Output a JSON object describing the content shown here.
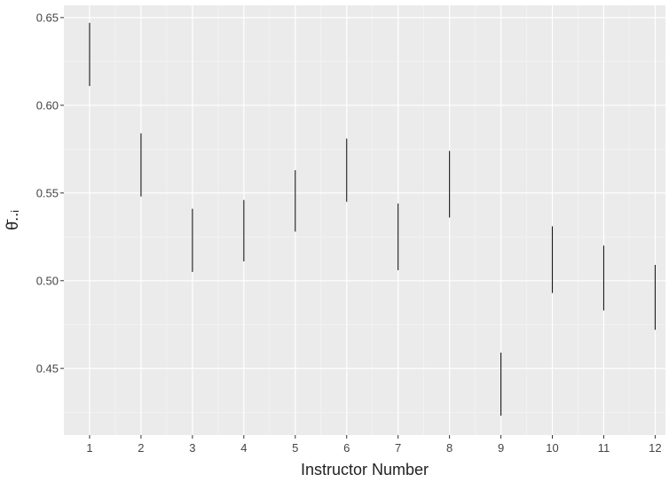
{
  "chart_data": {
    "type": "errorbar",
    "title": "",
    "xlabel": "Instructor Number",
    "ylabel": "θ̄..ᵢ",
    "grid": true,
    "xlim": [
      0.5,
      12.2
    ],
    "ylim": [
      0.412,
      0.657
    ],
    "y_ticks": [
      0.45,
      0.5,
      0.55,
      0.6,
      0.65
    ],
    "y_tick_labels": [
      "0.45",
      "0.50",
      "0.55",
      "0.60",
      "0.65"
    ],
    "categories": [
      "1",
      "2",
      "3",
      "4",
      "5",
      "6",
      "7",
      "8",
      "9",
      "10",
      "11",
      "12"
    ],
    "intervals": [
      {
        "x": 1,
        "low": 0.611,
        "high": 0.647
      },
      {
        "x": 2,
        "low": 0.548,
        "high": 0.584
      },
      {
        "x": 3,
        "low": 0.505,
        "high": 0.541
      },
      {
        "x": 4,
        "low": 0.511,
        "high": 0.546
      },
      {
        "x": 5,
        "low": 0.528,
        "high": 0.563
      },
      {
        "x": 6,
        "low": 0.545,
        "high": 0.581
      },
      {
        "x": 7,
        "low": 0.506,
        "high": 0.544
      },
      {
        "x": 8,
        "low": 0.536,
        "high": 0.574
      },
      {
        "x": 9,
        "low": 0.423,
        "high": 0.459
      },
      {
        "x": 10,
        "low": 0.493,
        "high": 0.531
      },
      {
        "x": 11,
        "low": 0.483,
        "high": 0.52
      },
      {
        "x": 12,
        "low": 0.472,
        "high": 0.509
      }
    ],
    "colors": {
      "panel": "#ebebeb",
      "grid_major": "#ffffff",
      "grid_minor": "#f5f5f5",
      "line": "#1a1a1a"
    }
  }
}
